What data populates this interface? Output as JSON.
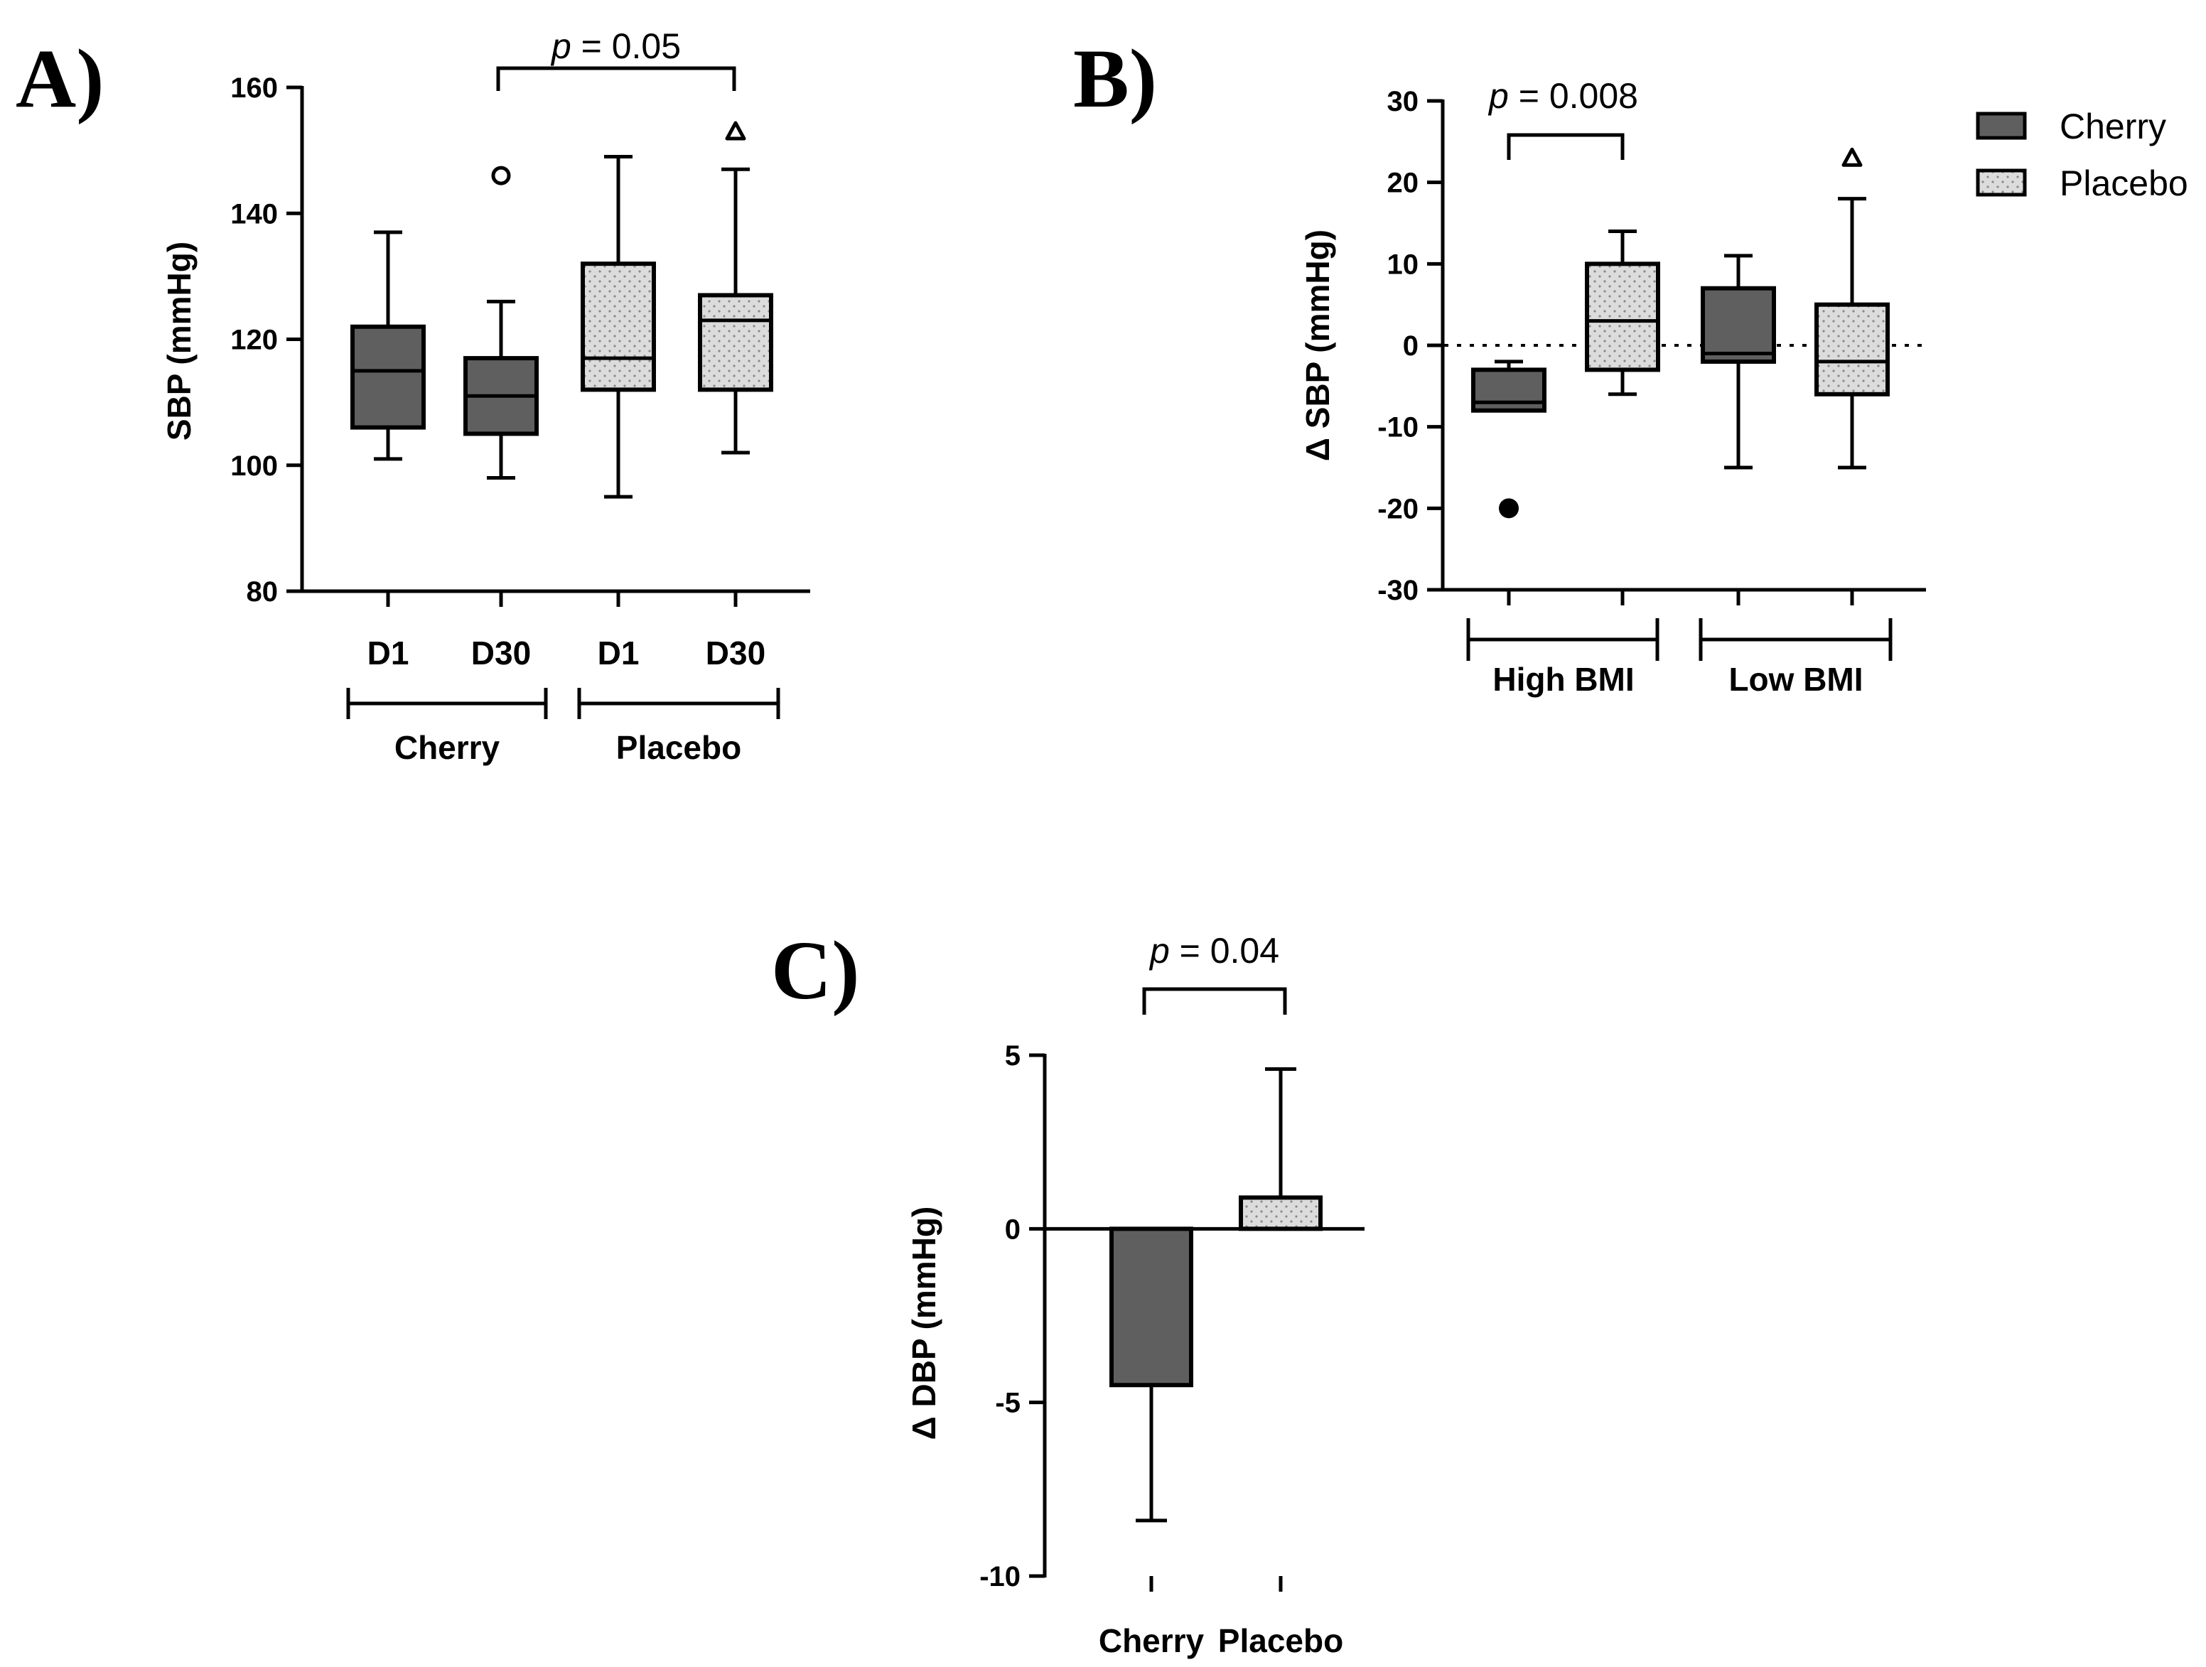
{
  "colors": {
    "cherry": "#5f5f5f",
    "placebo": "#dcdcdc",
    "dots": "#8a8a8a",
    "ink": "#000000"
  },
  "legend": {
    "items": [
      {
        "label": "Cherry",
        "key": "cherry"
      },
      {
        "label": "Placebo",
        "key": "placebo"
      }
    ]
  },
  "chart_data": [
    {
      "panel": "A)",
      "type": "box",
      "ylabel": "SBP (mmHg)",
      "ylim": [
        80,
        160
      ],
      "yticks": [
        80,
        100,
        120,
        140,
        160
      ],
      "categories": [
        "D1",
        "D30",
        "D1",
        "D30"
      ],
      "groups": [
        "Cherry",
        "Placebo"
      ],
      "boxes": [
        {
          "category": "D1",
          "group": "Cherry",
          "min": 101,
          "q1": 106,
          "median": 115,
          "q3": 122,
          "max": 137
        },
        {
          "category": "D30",
          "group": "Cherry",
          "min": 98,
          "q1": 105,
          "median": 111,
          "q3": 117,
          "max": 126,
          "outlier": {
            "value": 146,
            "marker": "circle-open"
          }
        },
        {
          "category": "D1",
          "group": "Placebo",
          "min": 95,
          "q1": 112,
          "median": 117,
          "q3": 132,
          "max": 149
        },
        {
          "category": "D30",
          "group": "Placebo",
          "min": 102,
          "q1": 112,
          "median": 123,
          "q3": 127,
          "max": 147,
          "outlier": {
            "value": 153,
            "marker": "triangle-open"
          }
        }
      ],
      "annotation": {
        "prefix": "p",
        "text": " = 0.05",
        "from": 1,
        "to": 3
      }
    },
    {
      "panel": "B)",
      "type": "box",
      "ylabel": "Δ SBP (mmHg)",
      "ylim": [
        -30,
        30
      ],
      "yticks": [
        -30,
        -20,
        -10,
        0,
        10,
        20,
        30
      ],
      "groups": [
        "High BMI",
        "Low BMI"
      ],
      "boxes": [
        {
          "group": "High BMI",
          "series": "Cherry",
          "min": -8,
          "q1": -8,
          "median": -7,
          "q3": -3,
          "max": -2,
          "outlier": {
            "value": -20,
            "marker": "circle-filled"
          }
        },
        {
          "group": "High BMI",
          "series": "Placebo",
          "min": -6,
          "q1": -3,
          "median": 3,
          "q3": 10,
          "max": 14
        },
        {
          "group": "Low BMI",
          "series": "Cherry",
          "min": -15,
          "q1": -2,
          "median": -1,
          "q3": 7,
          "max": 11
        },
        {
          "group": "Low BMI",
          "series": "Placebo",
          "min": -15,
          "q1": -6,
          "median": -2,
          "q3": 5,
          "max": 18,
          "outlier": {
            "value": 23,
            "marker": "triangle-open"
          }
        }
      ],
      "reference_line": 0,
      "annotation": {
        "prefix": "p",
        "text": " = 0.008",
        "from": 0,
        "to": 1
      }
    },
    {
      "panel": "C)",
      "type": "bar",
      "ylabel": "Δ DBP (mmHg)",
      "ylim": [
        -10,
        5
      ],
      "yticks": [
        -10,
        -5,
        0,
        5
      ],
      "ytick_labels": [
        "-10",
        "-5",
        "0",
        "5"
      ],
      "categories": [
        "Cherry",
        "Placebo"
      ],
      "values": [
        -4.5,
        0.9
      ],
      "error": [
        3.9,
        3.7
      ],
      "annotation": {
        "prefix": "p",
        "text": " = 0.04",
        "from": 0,
        "to": 1
      }
    }
  ]
}
